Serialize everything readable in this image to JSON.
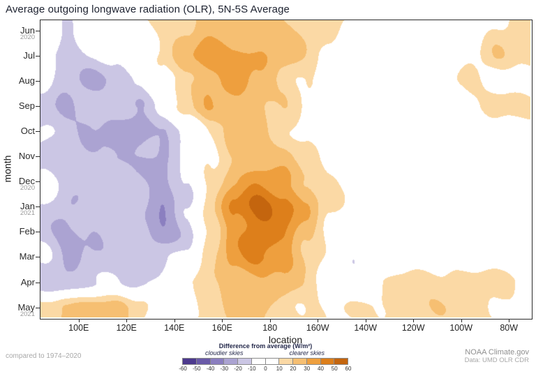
{
  "title": "Average outgoing longwave radiation (OLR), 5N-5S Average",
  "axes": {
    "y_label": "month",
    "x_label": "location",
    "x_ticks": [
      {
        "label": "100E",
        "deg_east": 100
      },
      {
        "label": "120E",
        "deg_east": 120
      },
      {
        "label": "140E",
        "deg_east": 140
      },
      {
        "label": "160E",
        "deg_east": 160
      },
      {
        "label": "180",
        "deg_east": 180
      },
      {
        "label": "160W",
        "deg_east": 200
      },
      {
        "label": "140W",
        "deg_east": 220
      },
      {
        "label": "120W",
        "deg_east": 240
      },
      {
        "label": "100W",
        "deg_east": 260
      },
      {
        "label": "80W",
        "deg_east": 280
      }
    ],
    "y_ticks": [
      {
        "label": "Jun",
        "year": "2020"
      },
      {
        "label": "Jul"
      },
      {
        "label": "Aug"
      },
      {
        "label": "Sep"
      },
      {
        "label": "Oct"
      },
      {
        "label": "Nov"
      },
      {
        "label": "Dec",
        "year": "2020"
      },
      {
        "label": "Jan",
        "year": "2021"
      },
      {
        "label": "Feb"
      },
      {
        "label": "Mar"
      },
      {
        "label": "Apr"
      },
      {
        "label": "May",
        "year": "2021"
      }
    ]
  },
  "legend": {
    "title": "Difference from average (W/m²)",
    "left_label": "cloudier skies",
    "right_label": "clearer skies",
    "tick_values": [
      -60,
      -50,
      -40,
      -30,
      -20,
      -10,
      0,
      10,
      20,
      30,
      40,
      50,
      60
    ]
  },
  "footer": {
    "compare_note": "compared to 1974–2020",
    "credit": "NOAA Climate.gov",
    "data_source": "Data: UMD OLR CDR"
  },
  "chart_data": {
    "type": "heatmap",
    "title": "Average outgoing longwave radiation (OLR), 5N-5S Average",
    "xlabel": "location",
    "ylabel": "month",
    "unit": "W/m²",
    "contour_interval": 10,
    "value_range": [
      -60,
      60
    ],
    "x_axis_range_deg_east": [
      84,
      289
    ],
    "x_deg_east": [
      85,
      95,
      105,
      115,
      125,
      135,
      145,
      155,
      165,
      175,
      185,
      195,
      205,
      215,
      225,
      235,
      245,
      255,
      265,
      275,
      285
    ],
    "y_months": [
      "Jun 2020",
      "Jul 2020",
      "Aug 2020",
      "Sep 2020",
      "Oct 2020",
      "Nov 2020",
      "Dec 2020",
      "Jan 2021",
      "Feb 2021",
      "Mar 2021",
      "Apr 2021",
      "May 2021"
    ],
    "anomaly_wm2": [
      [
        -5,
        -12,
        -8,
        0,
        6,
        14,
        22,
        28,
        26,
        22,
        20,
        16,
        12,
        2,
        0,
        0,
        0,
        0,
        4,
        12,
        14
      ],
      [
        -8,
        -15,
        -10,
        -4,
        4,
        16,
        28,
        38,
        34,
        28,
        24,
        16,
        6,
        0,
        0,
        0,
        0,
        0,
        8,
        16,
        12
      ],
      [
        -6,
        -14,
        -18,
        -16,
        -8,
        6,
        18,
        26,
        30,
        24,
        18,
        12,
        4,
        0,
        0,
        0,
        0,
        6,
        10,
        4,
        0
      ],
      [
        -12,
        -20,
        -14,
        -10,
        -18,
        -6,
        12,
        26,
        28,
        24,
        18,
        10,
        4,
        0,
        0,
        0,
        0,
        0,
        4,
        12,
        16
      ],
      [
        -8,
        -14,
        -18,
        -26,
        -32,
        -22,
        -8,
        12,
        22,
        24,
        18,
        10,
        4,
        0,
        0,
        0,
        0,
        0,
        0,
        4,
        6
      ],
      [
        -12,
        -18,
        -22,
        -24,
        -18,
        -22,
        -8,
        10,
        24,
        28,
        24,
        14,
        4,
        0,
        0,
        0,
        0,
        0,
        0,
        4,
        8
      ],
      [
        -8,
        -16,
        -18,
        -14,
        -18,
        -22,
        -4,
        14,
        30,
        38,
        32,
        20,
        8,
        0,
        0,
        0,
        0,
        -4,
        0,
        0,
        4
      ],
      [
        -12,
        -22,
        -14,
        -10,
        -16,
        -26,
        -10,
        18,
        42,
        52,
        44,
        28,
        12,
        4,
        0,
        0,
        0,
        0,
        0,
        0,
        0
      ],
      [
        -16,
        -22,
        -18,
        -12,
        -10,
        -28,
        -18,
        10,
        34,
        46,
        38,
        22,
        8,
        0,
        0,
        0,
        0,
        0,
        0,
        0,
        0
      ],
      [
        -8,
        -18,
        -14,
        -12,
        -18,
        -14,
        -4,
        14,
        32,
        40,
        38,
        24,
        8,
        -8,
        -4,
        0,
        0,
        0,
        0,
        0,
        0
      ],
      [
        -12,
        -18,
        -14,
        -8,
        -12,
        -8,
        2,
        16,
        26,
        30,
        28,
        18,
        4,
        0,
        4,
        10,
        14,
        14,
        14,
        14,
        10
      ],
      [
        12,
        22,
        28,
        22,
        10,
        -6,
        6,
        18,
        24,
        24,
        20,
        14,
        6,
        6,
        10,
        14,
        16,
        16,
        18,
        14,
        10
      ]
    ],
    "bin_colors": [
      "#4d3a8e",
      "#6a5aa8",
      "#8b7fc0",
      "#aba3d2",
      "#cbc6e4",
      "#ffffff",
      "#ffffff",
      "#fbd9a5",
      "#f6bf72",
      "#ee9f3e",
      "#dd7f1b",
      "#c4650e"
    ]
  }
}
